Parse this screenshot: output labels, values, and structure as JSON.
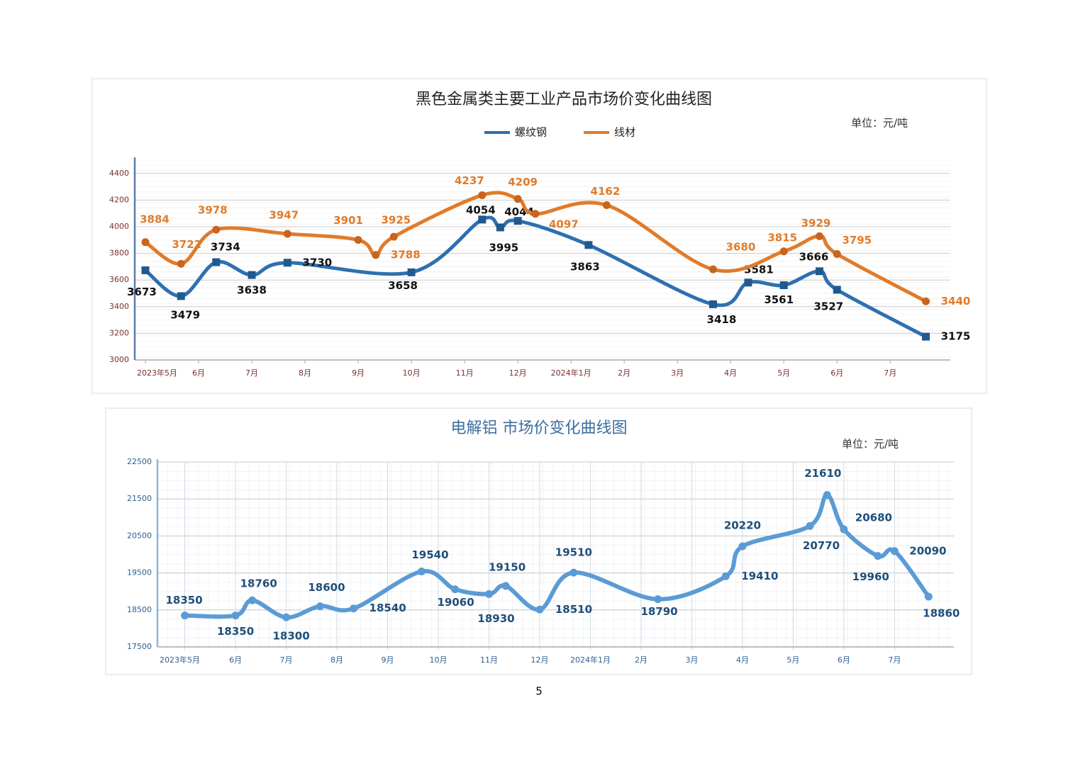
{
  "chart_data": [
    {
      "type": "line",
      "title": "黑色金属类主要工业产品市场价变化曲线图",
      "unit": "单位：元/吨",
      "xlim": [
        -0.2,
        15.13
      ],
      "xticks": [
        {
          "value": 0,
          "label": "2023年5月"
        },
        {
          "value": 1,
          "label": "6月"
        },
        {
          "value": 2,
          "label": "7月"
        },
        {
          "value": 3,
          "label": "8月"
        },
        {
          "value": 4,
          "label": "9月"
        },
        {
          "value": 5,
          "label": "10月"
        },
        {
          "value": 6,
          "label": "11月"
        },
        {
          "value": 7,
          "label": "12月"
        },
        {
          "value": 8,
          "label": "2024年1月"
        },
        {
          "value": 9,
          "label": "2月"
        },
        {
          "value": 10,
          "label": "3月"
        },
        {
          "value": 11,
          "label": "4月"
        },
        {
          "value": 12,
          "label": "5月"
        },
        {
          "value": 13,
          "label": "6月"
        },
        {
          "value": 14,
          "label": "7月"
        }
      ],
      "ylim": [
        3000,
        4500
      ],
      "yticks": [
        3000,
        3200,
        3400,
        3600,
        3800,
        4000,
        4200,
        4400
      ],
      "grid": true,
      "legend": "top",
      "series": [
        {
          "name": "螺纹钢",
          "color": "#2e6fb0",
          "marker": "square",
          "x": [
            0,
            0.67,
            1.33,
            2,
            2.67,
            5,
            6.33,
            6.67,
            7,
            8.33,
            10.67,
            11.33,
            12,
            12.67,
            13,
            14.67
          ],
          "values": [
            3673,
            3479,
            3734,
            3638,
            3730,
            3658,
            4054,
            3995,
            4044,
            3863,
            3418,
            3581,
            3561,
            3666,
            3527,
            3175
          ]
        },
        {
          "name": "线材",
          "color": "#e07b2a",
          "marker": "circle",
          "x": [
            0,
            0.67,
            1.33,
            2.67,
            4,
            4.33,
            4.67,
            6.33,
            7,
            7.33,
            8.67,
            10.67,
            12,
            12.67,
            13,
            14.67
          ],
          "values": [
            3884,
            3722,
            3978,
            3947,
            3901,
            3788,
            3925,
            4237,
            4209,
            4097,
            4162,
            3680,
            3815,
            3929,
            3795,
            3440
          ]
        }
      ]
    },
    {
      "type": "line",
      "title": "电解铝 市场价变化曲线图",
      "unit": "单位：元/吨",
      "xlim": [
        -0.54,
        15.17
      ],
      "xticks": [
        {
          "value": 0,
          "label": "2023年5月"
        },
        {
          "value": 1,
          "label": "6月"
        },
        {
          "value": 2,
          "label": "7月"
        },
        {
          "value": 3,
          "label": "8月"
        },
        {
          "value": 4,
          "label": "9月"
        },
        {
          "value": 5,
          "label": "10月"
        },
        {
          "value": 6,
          "label": "11月"
        },
        {
          "value": 7,
          "label": "12月"
        },
        {
          "value": 8,
          "label": "2024年1月"
        },
        {
          "value": 9,
          "label": "2月"
        },
        {
          "value": 10,
          "label": "3月"
        },
        {
          "value": 11,
          "label": "4月"
        },
        {
          "value": 12,
          "label": "5月"
        },
        {
          "value": 13,
          "label": "6月"
        },
        {
          "value": 14,
          "label": "7月"
        }
      ],
      "ylim": [
        17500,
        22500
      ],
      "yticks": [
        17500,
        18500,
        19500,
        20500,
        21500,
        22500
      ],
      "grid": true,
      "series": [
        {
          "color": "#5b9bd5",
          "marker": "circle",
          "x": [
            0,
            1,
            1.33,
            2,
            2.67,
            3.33,
            4.67,
            5.33,
            6,
            6.33,
            7,
            7.67,
            9.33,
            10.67,
            11,
            12.33,
            12.67,
            13,
            13.67,
            14,
            14.67
          ],
          "values": [
            18350,
            18350,
            18760,
            18300,
            18600,
            18540,
            19540,
            19060,
            18930,
            19150,
            18510,
            19510,
            18790,
            19410,
            20220,
            20770,
            21610,
            20680,
            19960,
            20090,
            18860
          ]
        }
      ]
    }
  ],
  "page_number": "5"
}
